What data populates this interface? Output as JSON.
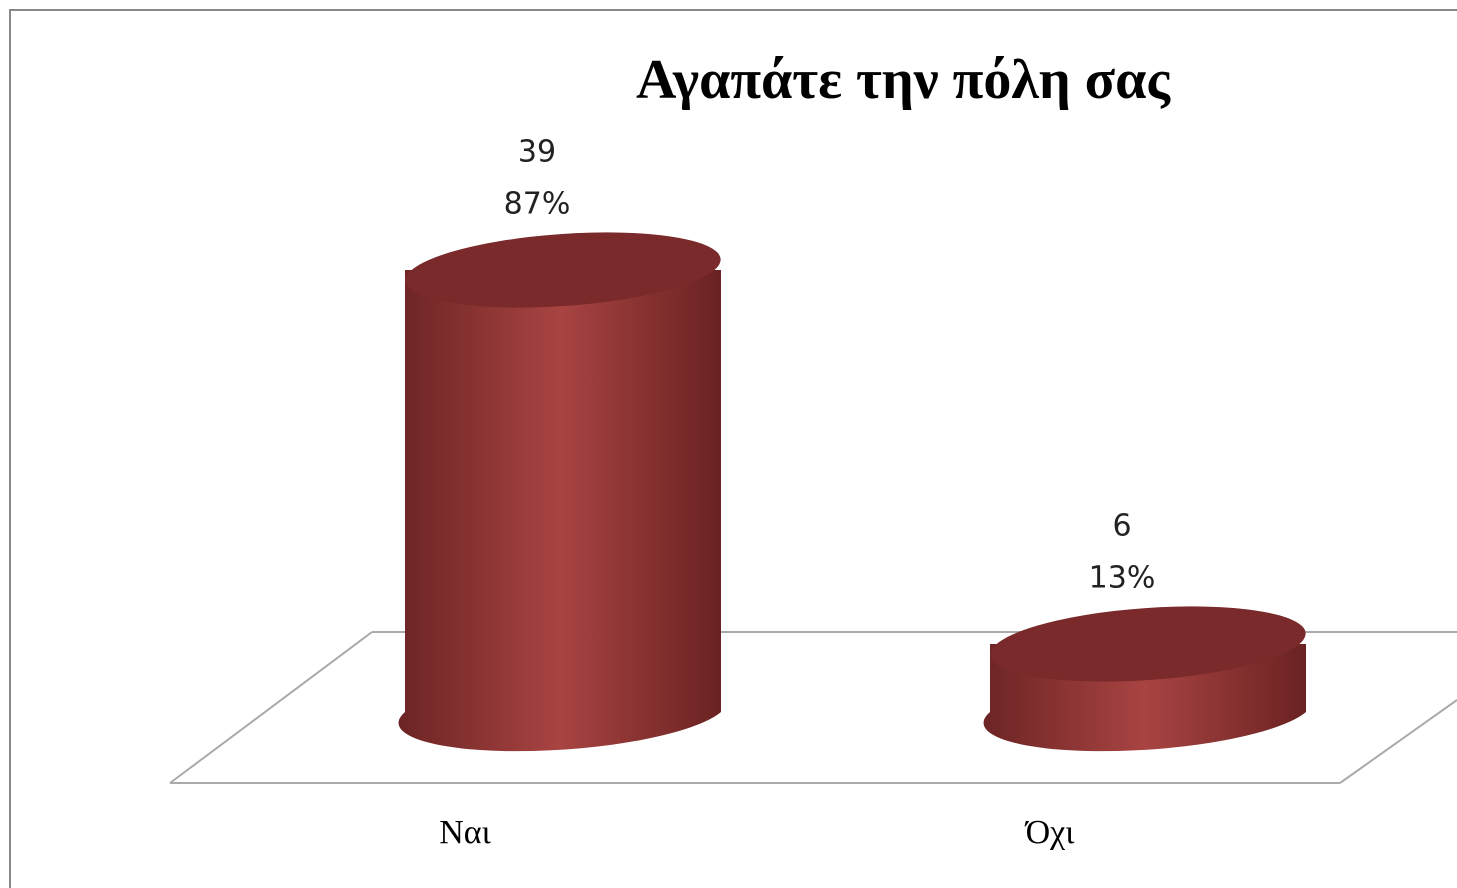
{
  "chart_data": {
    "type": "bar3d",
    "title": "Αγαπάτε την πόλη σας",
    "categories": [
      "Ναι",
      "Όχι"
    ],
    "values": [
      39,
      6
    ],
    "percentages": [
      87,
      13
    ],
    "percentage_labels": [
      "87%",
      "13%"
    ],
    "color": "#a84442"
  }
}
